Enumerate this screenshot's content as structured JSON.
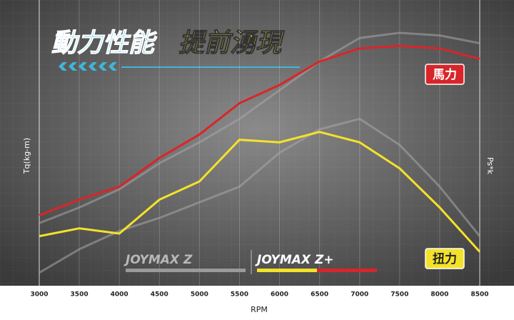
{
  "chart_data": {
    "type": "line",
    "title_parts": [
      "動力性能",
      "提前湧現"
    ],
    "x_label": "RPM",
    "y_label": "Tq(kg-m)",
    "y2_label": "Ps*k",
    "annotations": [
      {
        "text": "馬力",
        "color": "#d9252a"
      },
      {
        "text": "扭力",
        "color": "#f3e22a"
      }
    ],
    "legend": [
      {
        "label": "JOYMAX Z",
        "color": "#9a9a9a"
      },
      {
        "label": "JOYMAX Z+",
        "color": "#f3e22a"
      }
    ],
    "x": [
      3000,
      3500,
      4000,
      4500,
      5000,
      5500,
      6000,
      6500,
      7000,
      7500,
      8000,
      8500
    ],
    "xlim": [
      3000,
      8500
    ],
    "xticks": [
      3000,
      3500,
      4000,
      4500,
      5000,
      5500,
      6000,
      6500,
      7000,
      7500,
      8000,
      8500
    ],
    "ylim": [
      0,
      100
    ],
    "series": [
      {
        "color": "#a8a8a8",
        "values": [
          24,
          30,
          37,
          47,
          55,
          64,
          75,
          86,
          95,
          97,
          96,
          93
        ]
      },
      {
        "color": "#a8a8a8",
        "values": [
          5,
          14,
          21,
          26,
          32,
          38,
          51,
          60,
          64,
          54,
          38,
          19
        ]
      },
      {
        "color": "#d9252a",
        "values": [
          27,
          33,
          38,
          49,
          58,
          70,
          77,
          86,
          91,
          92,
          91,
          87
        ]
      },
      {
        "color": "#f3e22a",
        "values": [
          19,
          22,
          20,
          33,
          40,
          56,
          55,
          59,
          55,
          45,
          30,
          13
        ]
      }
    ]
  }
}
